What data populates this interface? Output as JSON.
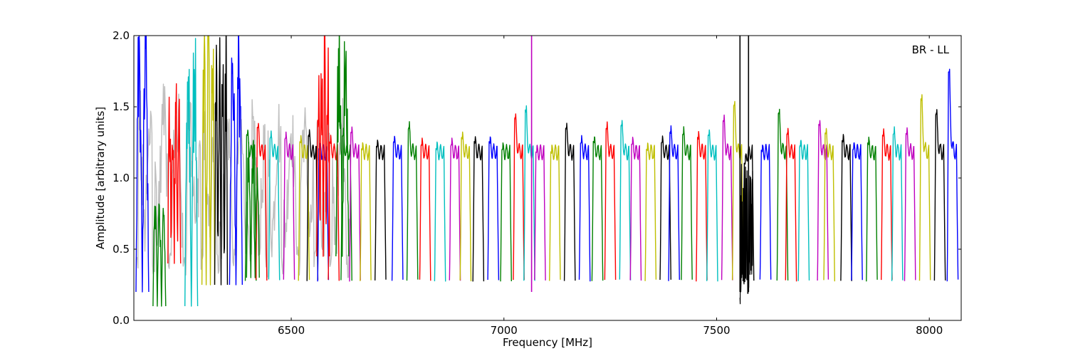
{
  "chart_data": {
    "type": "line",
    "title": "",
    "annotation": "BR - LL",
    "xlabel": "Frequency [MHz]",
    "ylabel": "Amplitude [arbitrary units]",
    "xlim": [
      6130,
      8075
    ],
    "ylim": [
      0.0,
      2.0
    ],
    "xticks": [
      {
        "value": 6500,
        "label": "6500"
      },
      {
        "value": 7000,
        "label": "7000"
      },
      {
        "value": 7500,
        "label": "7500"
      },
      {
        "value": 8000,
        "label": "8000"
      }
    ],
    "yticks": [
      {
        "value": 0.0,
        "label": "0.0"
      },
      {
        "value": 0.5,
        "label": "0.5"
      },
      {
        "value": 1.0,
        "label": "1.0"
      },
      {
        "value": 1.5,
        "label": "1.5"
      },
      {
        "value": 2.0,
        "label": "2.0"
      }
    ],
    "grid": false,
    "legend": false,
    "colors": [
      "#0000ff",
      "#008000",
      "#ff0000",
      "#00bfbf",
      "#bf00bf",
      "#bfbf00",
      "#000000"
    ],
    "background_color": "#c0c0c0",
    "band_width_mhz": 32,
    "band_gap_mhz": 6,
    "regular_bands_start_mhz": 6400,
    "regular_bands_end_mhz": 8075,
    "segments_note": "Repeating spectral-window segments; each segment is a bandpass shape with edge amplitude ~0.3 and plateau ~1.2",
    "peaks": [
      {
        "x": 6400,
        "peak": 1.3,
        "color": "#008000"
      },
      {
        "x": 6425,
        "peak": 1.35,
        "color": "#ff0000"
      },
      {
        "x": 6455,
        "peak": 1.28,
        "color": "#00bfbf"
      },
      {
        "x": 6490,
        "peak": 1.28,
        "color": "#bf00bf"
      },
      {
        "x": 6525,
        "peak": 1.25,
        "color": "#bfbf00"
      },
      {
        "x": 6545,
        "peak": 1.3,
        "color": "#000000"
      },
      {
        "x": 6570,
        "peak": 1.2,
        "color": "#0000ff"
      },
      {
        "x": 6595,
        "peak": 1.25,
        "color": "#ff0000"
      },
      {
        "x": 6625,
        "peak": 1.3,
        "color": "#008000"
      },
      {
        "x": 6645,
        "peak": 1.32,
        "color": "#bf00bf"
      },
      {
        "x": 6670,
        "peak": 1.2,
        "color": "#bfbf00"
      },
      {
        "x": 6705,
        "peak": 1.22,
        "color": "#000000"
      },
      {
        "x": 6745,
        "peak": 1.25,
        "color": "#0000ff"
      },
      {
        "x": 6780,
        "peak": 1.35,
        "color": "#008000"
      },
      {
        "x": 6810,
        "peak": 1.23,
        "color": "#ff0000"
      },
      {
        "x": 6845,
        "peak": 1.2,
        "color": "#00bfbf"
      },
      {
        "x": 6880,
        "peak": 1.23,
        "color": "#bf00bf"
      },
      {
        "x": 6905,
        "peak": 1.28,
        "color": "#bfbf00"
      },
      {
        "x": 6935,
        "peak": 1.25,
        "color": "#000000"
      },
      {
        "x": 6970,
        "peak": 1.25,
        "color": "#0000ff"
      },
      {
        "x": 7000,
        "peak": 1.2,
        "color": "#008000"
      },
      {
        "x": 7030,
        "peak": 1.42,
        "color": "#ff0000"
      },
      {
        "x": 7055,
        "peak": 1.47,
        "color": "#00bfbf"
      },
      {
        "x": 7080,
        "peak": 1.18,
        "color": "#bf00bf"
      },
      {
        "x": 7115,
        "peak": 1.18,
        "color": "#bfbf00"
      },
      {
        "x": 7150,
        "peak": 1.35,
        "color": "#000000"
      },
      {
        "x": 7185,
        "peak": 1.25,
        "color": "#0000ff"
      },
      {
        "x": 7215,
        "peak": 1.25,
        "color": "#008000"
      },
      {
        "x": 7245,
        "peak": 1.35,
        "color": "#ff0000"
      },
      {
        "x": 7280,
        "peak": 1.37,
        "color": "#00bfbf"
      },
      {
        "x": 7305,
        "peak": 1.24,
        "color": "#bf00bf"
      },
      {
        "x": 7340,
        "peak": 1.2,
        "color": "#bfbf00"
      },
      {
        "x": 7375,
        "peak": 1.25,
        "color": "#000000"
      },
      {
        "x": 7395,
        "peak": 1.32,
        "color": "#0000ff"
      },
      {
        "x": 7425,
        "peak": 1.31,
        "color": "#008000"
      },
      {
        "x": 7460,
        "peak": 1.28,
        "color": "#ff0000"
      },
      {
        "x": 7485,
        "peak": 1.3,
        "color": "#00bfbf"
      },
      {
        "x": 7520,
        "peak": 1.4,
        "color": "#bf00bf"
      },
      {
        "x": 7545,
        "peak": 1.51,
        "color": "#bfbf00"
      },
      {
        "x": 7570,
        "peak": 1.1,
        "color": "#000000"
      },
      {
        "x": 7610,
        "peak": 1.19,
        "color": "#0000ff"
      },
      {
        "x": 7650,
        "peak": 1.45,
        "color": "#008000"
      },
      {
        "x": 7670,
        "peak": 1.31,
        "color": "#ff0000"
      },
      {
        "x": 7700,
        "peak": 1.22,
        "color": "#00bfbf"
      },
      {
        "x": 7745,
        "peak": 1.37,
        "color": "#bf00bf"
      },
      {
        "x": 7760,
        "peak": 1.31,
        "color": "#bfbf00"
      },
      {
        "x": 7800,
        "peak": 1.26,
        "color": "#000000"
      },
      {
        "x": 7825,
        "peak": 1.2,
        "color": "#0000ff"
      },
      {
        "x": 7860,
        "peak": 1.24,
        "color": "#008000"
      },
      {
        "x": 7895,
        "peak": 1.3,
        "color": "#ff0000"
      },
      {
        "x": 7920,
        "peak": 1.31,
        "color": "#00bfbf"
      },
      {
        "x": 7950,
        "peak": 1.31,
        "color": "#bf00bf"
      },
      {
        "x": 7985,
        "peak": 1.55,
        "color": "#bfbf00"
      },
      {
        "x": 8020,
        "peak": 1.45,
        "color": "#000000"
      },
      {
        "x": 8050,
        "peak": 1.74,
        "color": "#0000ff"
      }
    ]
  }
}
